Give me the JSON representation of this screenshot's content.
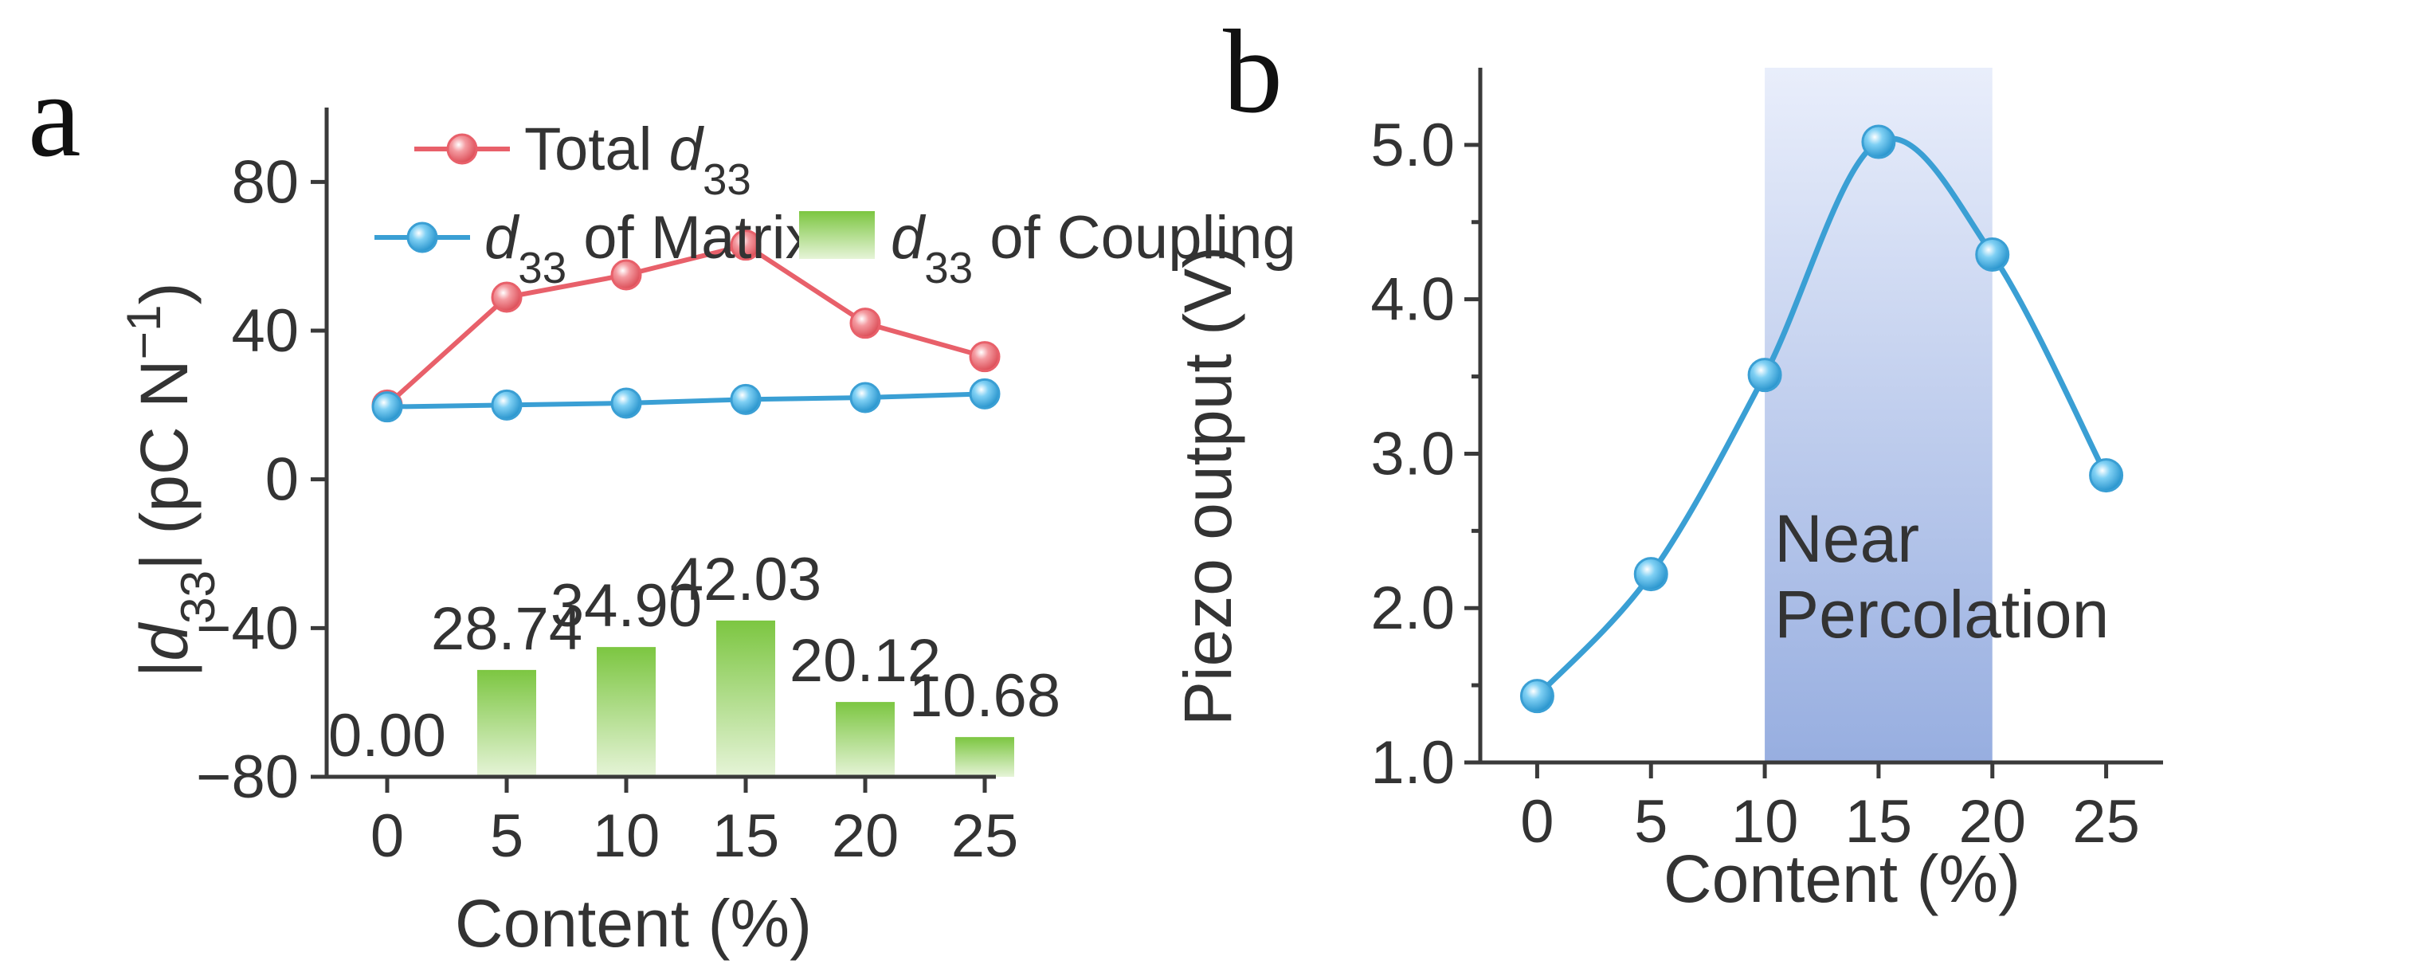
{
  "chart_data": [
    {
      "panel": "a",
      "type": "bar",
      "xlabel": "Content (%)",
      "ylabel_parts": [
        "|d",
        "33",
        "|  (pC N",
        "−1",
        ")"
      ],
      "ylim": [
        -80,
        100
      ],
      "yticks": [
        -80,
        -40,
        0,
        40,
        80
      ],
      "x": [
        0,
        5,
        10,
        15,
        20,
        25
      ],
      "xticks": [
        "0",
        "5",
        "10",
        "15",
        "20",
        "25"
      ],
      "series": [
        {
          "name": "Total d33",
          "legend_parts": [
            "Total ",
            "d",
            "33"
          ],
          "kind": "line",
          "color": "#e8606a",
          "values": [
            20,
            49,
            55,
            63,
            42,
            33
          ]
        },
        {
          "name": "d33 of Matrix",
          "legend_parts": [
            "d",
            "33",
            " of Matrix"
          ],
          "kind": "line",
          "color": "#3a9fd4",
          "values": [
            19.5,
            20,
            20.5,
            21.5,
            22,
            23
          ]
        },
        {
          "name": "d33 of Coupling",
          "legend_parts": [
            "d",
            "33",
            " of Coupling"
          ],
          "kind": "bar",
          "color": "#7cc641",
          "values": [
            0.0,
            28.74,
            34.9,
            42.03,
            20.12,
            10.68
          ],
          "labels": [
            "0.00",
            "28.74",
            "34.90",
            "42.03",
            "20.12",
            "10.68"
          ]
        }
      ],
      "legend_placement": "top"
    },
    {
      "panel": "b",
      "type": "line",
      "xlabel": "Content (%)",
      "ylabel": "Piezo output (V)",
      "ylim": [
        1.0,
        5.5
      ],
      "yticks": [
        "1.0",
        "2.0",
        "3.0",
        "4.0",
        "5.0"
      ],
      "xlim": [
        -2.5,
        27.5
      ],
      "x": [
        0,
        5,
        10,
        15,
        20,
        25
      ],
      "xticks": [
        "0",
        "5",
        "10",
        "15",
        "20",
        "25"
      ],
      "series": [
        {
          "kind": "line",
          "color": "#3a9fd4",
          "values": [
            1.43,
            2.22,
            3.51,
            5.02,
            4.29,
            2.86
          ]
        }
      ],
      "highlight": {
        "x_from": 10,
        "x_to": 20,
        "label_lines": [
          "Near",
          "Percolation"
        ],
        "color": "#a9b8e4"
      }
    }
  ]
}
